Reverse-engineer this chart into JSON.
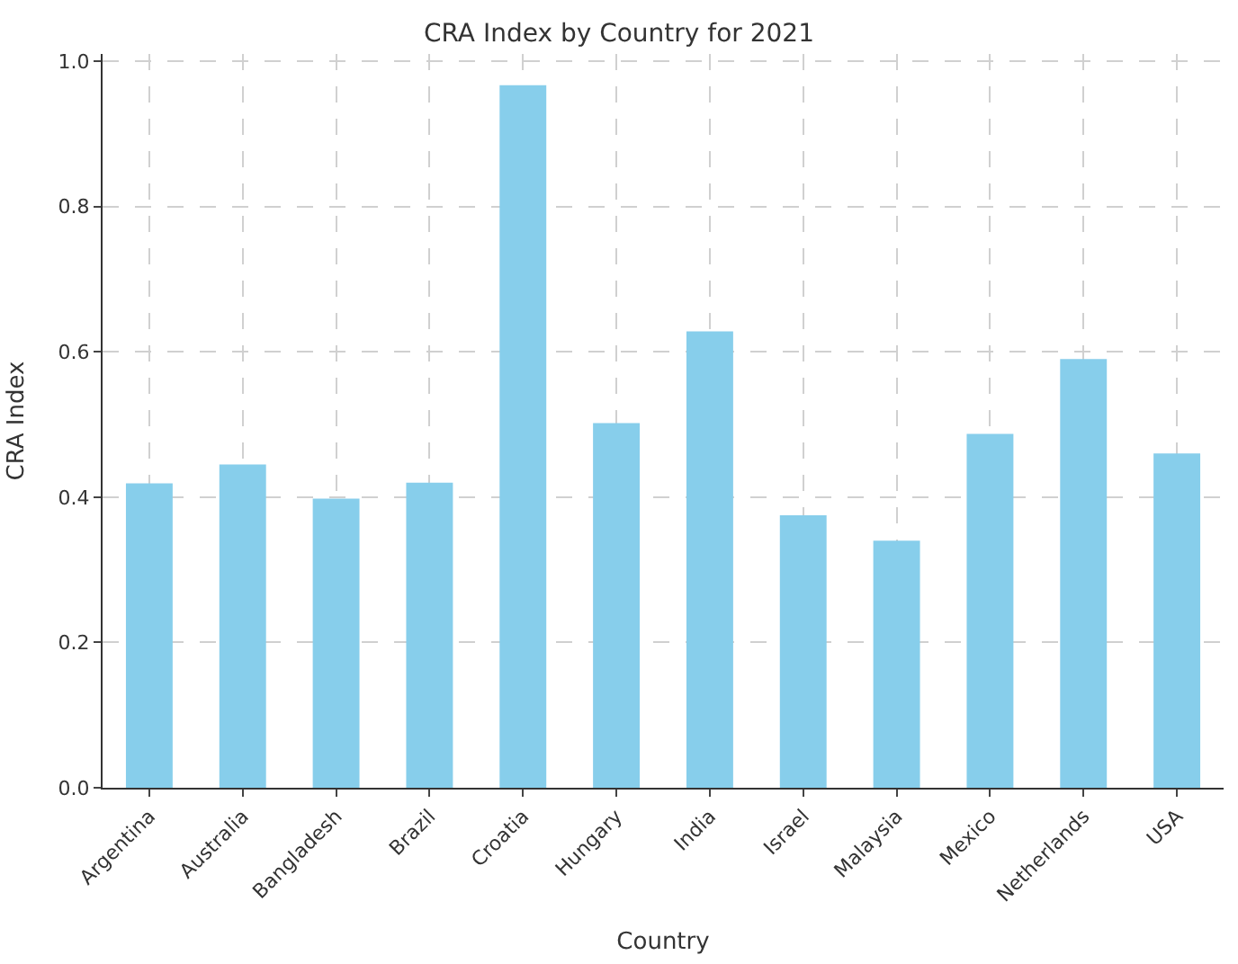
{
  "chart_data": {
    "type": "bar",
    "title": "CRA Index by Country for 2021",
    "xlabel": "Country",
    "ylabel": "CRA Index",
    "categories": [
      "Argentina",
      "Australia",
      "Bangladesh",
      "Brazil",
      "Croatia",
      "Hungary",
      "India",
      "Israel",
      "Malaysia",
      "Mexico",
      "Netherlands",
      "USA"
    ],
    "values": [
      0.419,
      0.445,
      0.398,
      0.42,
      0.967,
      0.502,
      0.628,
      0.375,
      0.34,
      0.487,
      0.59,
      0.46
    ],
    "color": "#87ceeb",
    "ylim": [
      0,
      1.01
    ],
    "yticks": [
      {
        "value": 0,
        "label": "0.0"
      },
      0.2,
      0.4,
      0.6,
      0.8,
      {
        "value": 1,
        "label": "1.0"
      }
    ],
    "grid": true
  }
}
